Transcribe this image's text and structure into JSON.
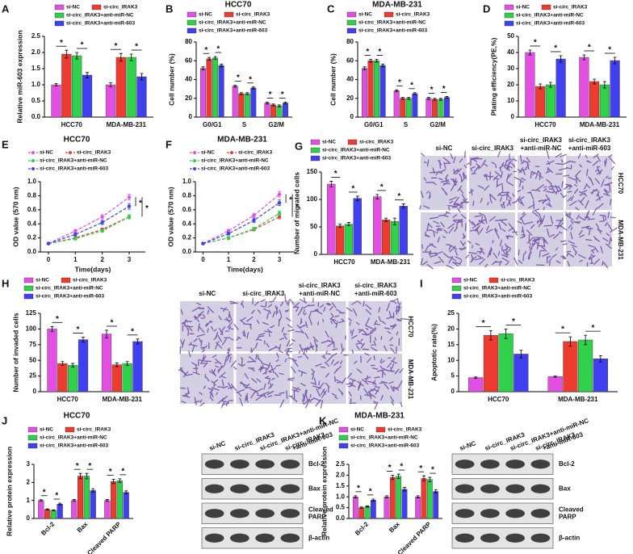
{
  "chart_data": [
    {
      "panel": "A",
      "type": "bar",
      "y_label": "Relative miR-603 expression",
      "categories": [
        "HCC70",
        "MDA-MB-231"
      ],
      "series": [
        {
          "name": "si-NC",
          "color": "#e34fe3",
          "values": [
            1.0,
            1.0
          ],
          "errors": [
            0.04,
            0.06
          ]
        },
        {
          "name": "si-circ_IRAK3",
          "color": "#ee3b2f",
          "values": [
            1.95,
            1.85
          ],
          "errors": [
            0.12,
            0.12
          ]
        },
        {
          "name": "si-circ_IRAK3+anti-miR-NC",
          "color": "#2fd14a",
          "values": [
            1.9,
            1.85
          ],
          "errors": [
            0.1,
            0.1
          ]
        },
        {
          "name": "si-circ_IRAK3+anti-miR-603",
          "color": "#4040f0",
          "values": [
            1.3,
            1.25
          ],
          "errors": [
            0.08,
            0.1
          ]
        }
      ],
      "ylim": [
        0,
        2.5
      ],
      "yticks": [
        {
          "value": 0,
          "label": "0.0"
        },
        0.5,
        {
          "value": 1,
          "label": "1.0"
        },
        1.5,
        {
          "value": 2,
          "label": "2.0"
        },
        2.5
      ],
      "significance_label": "*"
    },
    {
      "panel": "B",
      "type": "bar",
      "title": "HCC70",
      "y_label": "Cell number (%)",
      "categories": [
        "G0/G1",
        "S",
        "G2/M"
      ],
      "series": [
        {
          "name": "si-NC",
          "color": "#e34fe3",
          "values": [
            52,
            33,
            15
          ],
          "errors": [
            1.5,
            1,
            1
          ]
        },
        {
          "name": "si-circ_IRAK3",
          "color": "#ee3b2f",
          "values": [
            62,
            25,
            13
          ],
          "errors": [
            1.5,
            1,
            1
          ]
        },
        {
          "name": "si-circ_IRAK3+anti-miR-NC",
          "color": "#2fd14a",
          "values": [
            63,
            25,
            12
          ],
          "errors": [
            1.5,
            1,
            1
          ]
        },
        {
          "name": "si-circ_IRAK3+anti-miR-603",
          "color": "#4040f0",
          "values": [
            55,
            31,
            15
          ],
          "errors": [
            1.5,
            1,
            1
          ]
        }
      ],
      "ylim": [
        0,
        80
      ],
      "yticks": [
        0,
        20,
        40,
        60,
        80
      ],
      "significance_label": "*"
    },
    {
      "panel": "C",
      "type": "bar",
      "title": "MDA-MB-231",
      "y_label": "Cell number (%)",
      "categories": [
        "G0/G1",
        "S",
        "G2/M"
      ],
      "series": [
        {
          "name": "si-NC",
          "color": "#e34fe3",
          "values": [
            52,
            28,
            20
          ],
          "errors": [
            1.5,
            1,
            1
          ]
        },
        {
          "name": "si-circ_IRAK3",
          "color": "#ee3b2f",
          "values": [
            60,
            20,
            19
          ],
          "errors": [
            1.5,
            1,
            1
          ]
        },
        {
          "name": "si-circ_IRAK3+anti-miR-NC",
          "color": "#2fd14a",
          "values": [
            60,
            20,
            19
          ],
          "errors": [
            1.5,
            1,
            1
          ]
        },
        {
          "name": "si-circ_IRAK3+anti-miR-603",
          "color": "#4040f0",
          "values": [
            55,
            25,
            21
          ],
          "errors": [
            1.5,
            1,
            1
          ]
        }
      ],
      "ylim": [
        0,
        80
      ],
      "yticks": [
        0,
        20,
        40,
        60,
        80
      ],
      "significance_label": "*"
    },
    {
      "panel": "D",
      "type": "bar",
      "y_label": "Plating efficiency(PE,%)",
      "categories": [
        "HCC70",
        "MDA-MB-231"
      ],
      "series": [
        {
          "name": "si-NC",
          "color": "#e34fe3",
          "values": [
            40,
            37
          ],
          "errors": [
            1.5,
            1.5
          ]
        },
        {
          "name": "si-circ_IRAK3",
          "color": "#ee3b2f",
          "values": [
            19,
            22
          ],
          "errors": [
            1.5,
            1.5
          ]
        },
        {
          "name": "si-circ_IRAK3+anti-miR-NC",
          "color": "#2fd14a",
          "values": [
            20,
            20
          ],
          "errors": [
            1.5,
            2
          ]
        },
        {
          "name": "si-circ_IRAK3+anti-miR-603",
          "color": "#4040f0",
          "values": [
            36,
            35
          ],
          "errors": [
            2,
            2
          ]
        }
      ],
      "ylim": [
        0,
        50
      ],
      "yticks": [
        0,
        10,
        20,
        30,
        40,
        50
      ],
      "significance_label": "*"
    },
    {
      "panel": "E",
      "type": "line",
      "title": "HCC70",
      "y_label": "OD value (570 nm)",
      "x_label": "Time(days)",
      "line_style": "dashed",
      "x": [
        0,
        1,
        2,
        3
      ],
      "series": [
        {
          "name": "si-NC",
          "color": "#e34fe3",
          "values": [
            0.12,
            0.3,
            0.5,
            0.78
          ],
          "errors": [
            0.01,
            0.02,
            0.03,
            0.04
          ]
        },
        {
          "name": "si-circ_IRAK3",
          "color": "#ee3b2f",
          "values": [
            0.12,
            0.2,
            0.32,
            0.5
          ],
          "errors": [
            0.01,
            0.02,
            0.02,
            0.03
          ]
        },
        {
          "name": "si-circ_IRAK3+anti-miR-NC",
          "color": "#2fd14a",
          "values": [
            0.12,
            0.19,
            0.3,
            0.5
          ],
          "errors": [
            0.01,
            0.02,
            0.02,
            0.03
          ]
        },
        {
          "name": "si-circ_IRAK3+anti-miR-603",
          "color": "#4040f0",
          "values": [
            0.12,
            0.25,
            0.42,
            0.65
          ],
          "errors": [
            0.01,
            0.02,
            0.03,
            0.04
          ]
        }
      ],
      "xlim": [
        -0.3,
        3.6
      ],
      "xticks": [
        0,
        1,
        2,
        3
      ],
      "ylim": [
        0,
        1
      ],
      "yticks": [
        {
          "value": 0,
          "label": "0.0"
        },
        0.2,
        0.4,
        0.6,
        0.8,
        {
          "value": 1,
          "label": "1.0"
        }
      ],
      "significance_label": "*"
    },
    {
      "panel": "F",
      "type": "line",
      "title": "MDA-MB-231",
      "y_label": "OD value (570 nm)",
      "x_label": "Time(days)",
      "line_style": "dashed",
      "x": [
        0,
        1,
        2,
        3
      ],
      "series": [
        {
          "name": "si-NC",
          "color": "#e34fe3",
          "values": [
            0.12,
            0.3,
            0.52,
            0.82
          ],
          "errors": [
            0.01,
            0.02,
            0.03,
            0.04
          ]
        },
        {
          "name": "si-circ_IRAK3",
          "color": "#ee3b2f",
          "values": [
            0.12,
            0.2,
            0.32,
            0.5
          ],
          "errors": [
            0.01,
            0.02,
            0.02,
            0.03
          ]
        },
        {
          "name": "si-circ_IRAK3+anti-miR-NC",
          "color": "#2fd14a",
          "values": [
            0.12,
            0.2,
            0.33,
            0.55
          ],
          "errors": [
            0.01,
            0.02,
            0.02,
            0.03
          ]
        },
        {
          "name": "si-circ_IRAK3+anti-miR-603",
          "color": "#4040f0",
          "values": [
            0.12,
            0.26,
            0.45,
            0.7
          ],
          "errors": [
            0.01,
            0.02,
            0.03,
            0.04
          ]
        }
      ],
      "xlim": [
        -0.3,
        3.6
      ],
      "xticks": [
        0,
        1,
        2,
        3
      ],
      "ylim": [
        0,
        1
      ],
      "yticks": [
        {
          "value": 0,
          "label": "0.0"
        },
        0.2,
        0.4,
        0.6,
        0.8,
        {
          "value": 1,
          "label": "1.0"
        }
      ],
      "significance_label": "*"
    },
    {
      "panel": "G",
      "type": "bar",
      "y_label": "Number of migrated cells",
      "categories": [
        "HCC70",
        "MDA-MB-231"
      ],
      "series": [
        {
          "name": "si-NC",
          "color": "#e34fe3",
          "values": [
            128,
            105
          ],
          "errors": [
            5,
            4
          ]
        },
        {
          "name": "si-circ_IRAK3",
          "color": "#ee3b2f",
          "values": [
            52,
            63
          ],
          "errors": [
            3,
            3
          ]
        },
        {
          "name": "si-circ_IRAK3+anti-miR-NC",
          "color": "#2fd14a",
          "values": [
            55,
            60
          ],
          "errors": [
            3,
            6
          ]
        },
        {
          "name": "si-circ_IRAK3+anti-miR-603",
          "color": "#4040f0",
          "values": [
            102,
            88
          ],
          "errors": [
            4,
            4
          ]
        }
      ],
      "ylim": [
        0,
        150
      ],
      "yticks": [
        0,
        50,
        100,
        150
      ],
      "significance_label": "*",
      "micrograph_columns": [
        [
          "si-NC"
        ],
        [
          "si-circ_IRAK3"
        ],
        [
          "si-circ_IRAK3",
          "+anti-miR-NC"
        ],
        [
          "si-circ_IRAK3",
          "+anti-miR-603"
        ]
      ],
      "micrograph_rows": [
        "HCC70",
        "MDA-MB-231"
      ]
    },
    {
      "panel": "H",
      "type": "bar",
      "y_label": "Number of invaded cells",
      "categories": [
        "HCC70",
        "MDA-MB-231"
      ],
      "series": [
        {
          "name": "si-NC",
          "color": "#e34fe3",
          "values": [
            100,
            92
          ],
          "errors": [
            4,
            6
          ]
        },
        {
          "name": "si-circ_IRAK3",
          "color": "#ee3b2f",
          "values": [
            45,
            43
          ],
          "errors": [
            3,
            3
          ]
        },
        {
          "name": "si-circ_IRAK3+anti-miR-NC",
          "color": "#2fd14a",
          "values": [
            42,
            45
          ],
          "errors": [
            3,
            3
          ]
        },
        {
          "name": "si-circ_IRAK3+anti-miR-603",
          "color": "#4040f0",
          "values": [
            83,
            80
          ],
          "errors": [
            4,
            4
          ]
        }
      ],
      "ylim": [
        0,
        125
      ],
      "yticks": [
        0,
        25,
        50,
        75,
        100,
        125
      ],
      "significance_label": "*",
      "micrograph_columns": [
        [
          "si-NC"
        ],
        [
          "si-circ_IRAK3"
        ],
        [
          "si-circ_IRAK3",
          "+anti-miR-NC"
        ],
        [
          "si-circ_IRAK3",
          "+anti-miR-603"
        ]
      ],
      "micrograph_rows": [
        "HCC70",
        "MDA-MB-231"
      ]
    },
    {
      "panel": "I",
      "type": "bar",
      "y_label": "Apoptotic rate(%)",
      "categories": [
        "HCC70",
        "MDA-MB-231"
      ],
      "series": [
        {
          "name": "si-NC",
          "color": "#e34fe3",
          "values": [
            4.5,
            4.8
          ],
          "errors": [
            0.2,
            0.2
          ]
        },
        {
          "name": "si-circ_IRAK3",
          "color": "#ee3b2f",
          "values": [
            18,
            16
          ],
          "errors": [
            1.5,
            1.5
          ]
        },
        {
          "name": "si-circ_IRAK3+anti-miR-NC",
          "color": "#2fd14a",
          "values": [
            18.5,
            16.5
          ],
          "errors": [
            1.5,
            1.5
          ]
        },
        {
          "name": "si-circ_IRAK3+anti-miR-603",
          "color": "#4040f0",
          "values": [
            12,
            10.5
          ],
          "errors": [
            1.2,
            1
          ]
        }
      ],
      "ylim": [
        0,
        25
      ],
      "yticks": [
        0,
        5,
        10,
        15,
        20,
        25
      ],
      "significance_label": "*"
    },
    {
      "panel": "J",
      "type": "bar",
      "title": "HCC70",
      "y_label": "Relative protein expression",
      "categories": [
        "Bcl-2",
        "Bax",
        "Cleaved PARP"
      ],
      "series": [
        {
          "name": "si-NC",
          "color": "#e34fe3",
          "values": [
            1.0,
            1.0,
            1.0
          ],
          "errors": [
            0.04,
            0.05,
            0.05
          ]
        },
        {
          "name": "si-circ_IRAK3",
          "color": "#ee3b2f",
          "values": [
            0.5,
            2.35,
            2.05
          ],
          "errors": [
            0.03,
            0.15,
            0.12
          ]
        },
        {
          "name": "si-circ_IRAK3+anti-miR-NC",
          "color": "#2fd14a",
          "values": [
            0.45,
            2.35,
            2.1
          ],
          "errors": [
            0.03,
            0.15,
            0.1
          ]
        },
        {
          "name": "si-circ_IRAK3+anti-miR-603",
          "color": "#4040f0",
          "values": [
            0.8,
            1.55,
            1.45
          ],
          "errors": [
            0.05,
            0.1,
            0.08
          ]
        }
      ],
      "ylim": [
        0,
        3
      ],
      "yticks": [
        0,
        1,
        2,
        3
      ],
      "significance_label": "*",
      "blot_columns": [
        [
          "si-NC"
        ],
        [
          "si-circ_IRAK3"
        ],
        [
          "si-circ_IRAK3+anti-miR-NC"
        ],
        [
          "si-circ_IRAK3",
          "+anti-miR-603"
        ]
      ],
      "blot_rows": [
        [
          "Bcl-2"
        ],
        [
          "Bax"
        ],
        [
          "Cleaved",
          "PARP"
        ],
        [
          "β-actin"
        ]
      ]
    },
    {
      "panel": "K",
      "type": "bar",
      "title": "MDA-MB-231",
      "y_label": "Relative protein expression",
      "categories": [
        "Bcl-2",
        "Bax",
        "Cleaved PARP"
      ],
      "series": [
        {
          "name": "si-NC",
          "color": "#e34fe3",
          "values": [
            1.0,
            1.0,
            1.0
          ],
          "errors": [
            0.05,
            0.05,
            0.05
          ]
        },
        {
          "name": "si-circ_IRAK3",
          "color": "#ee3b2f",
          "values": [
            0.5,
            1.9,
            1.85
          ],
          "errors": [
            0.03,
            0.1,
            0.12
          ]
        },
        {
          "name": "si-circ_IRAK3+anti-miR-NC",
          "color": "#2fd14a",
          "values": [
            0.55,
            1.95,
            1.8
          ],
          "errors": [
            0.03,
            0.1,
            0.1
          ]
        },
        {
          "name": "si-circ_IRAK3+anti-miR-603",
          "color": "#4040f0",
          "values": [
            0.85,
            1.35,
            1.25
          ],
          "errors": [
            0.05,
            0.08,
            0.08
          ]
        }
      ],
      "ylim": [
        0,
        2.5
      ],
      "yticks": [
        {
          "value": 0,
          "label": "0.0"
        },
        0.5,
        {
          "value": 1,
          "label": "1.0"
        },
        1.5,
        {
          "value": 2,
          "label": "2.0"
        },
        2.5
      ],
      "significance_label": "*",
      "blot_columns": [
        [
          "si-NC"
        ],
        [
          "si-circ_IRAK3"
        ],
        [
          "si-circ_IRAK3+anti-miR-NC"
        ],
        [
          "si-circ_IRAK3",
          "+anti-miR-603"
        ]
      ],
      "blot_rows": [
        [
          "Bcl-2"
        ],
        [
          "Bax"
        ],
        [
          "Cleaved",
          "PARP"
        ],
        [
          "β-actin"
        ]
      ]
    }
  ]
}
